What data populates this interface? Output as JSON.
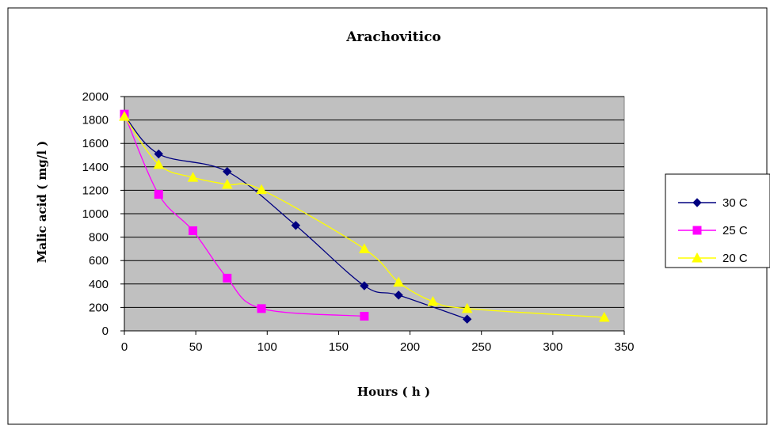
{
  "chart_data": {
    "type": "line",
    "title": "Arachovitico",
    "xlabel": "Hours ( h )",
    "ylabel": "Malic acid ( mg/l )",
    "xlim": [
      0,
      350
    ],
    "ylim": [
      0,
      2000
    ],
    "x_ticks": [
      0,
      50,
      100,
      150,
      200,
      250,
      300,
      350
    ],
    "y_ticks": [
      0,
      200,
      400,
      600,
      800,
      1000,
      1200,
      1400,
      1600,
      1800,
      2000
    ],
    "grid": "horizontal",
    "plot_background": "#c0c0c0",
    "legend_position": "right",
    "series": [
      {
        "name": "30 C",
        "color": "#000080",
        "marker": "diamond",
        "x": [
          0,
          24,
          72,
          120,
          168,
          192,
          240
        ],
        "y": [
          1840,
          1510,
          1360,
          900,
          385,
          305,
          100
        ]
      },
      {
        "name": "25 C",
        "color": "#ff00ff",
        "marker": "square",
        "x": [
          0,
          24,
          48,
          72,
          96,
          168
        ],
        "y": [
          1850,
          1165,
          855,
          450,
          190,
          125
        ]
      },
      {
        "name": "20 C",
        "color": "#ffff00",
        "marker": "triangle",
        "x": [
          0,
          24,
          48,
          72,
          96,
          168,
          192,
          216,
          240,
          336
        ],
        "y": [
          1830,
          1420,
          1310,
          1250,
          1205,
          700,
          415,
          250,
          190,
          115
        ]
      }
    ]
  }
}
